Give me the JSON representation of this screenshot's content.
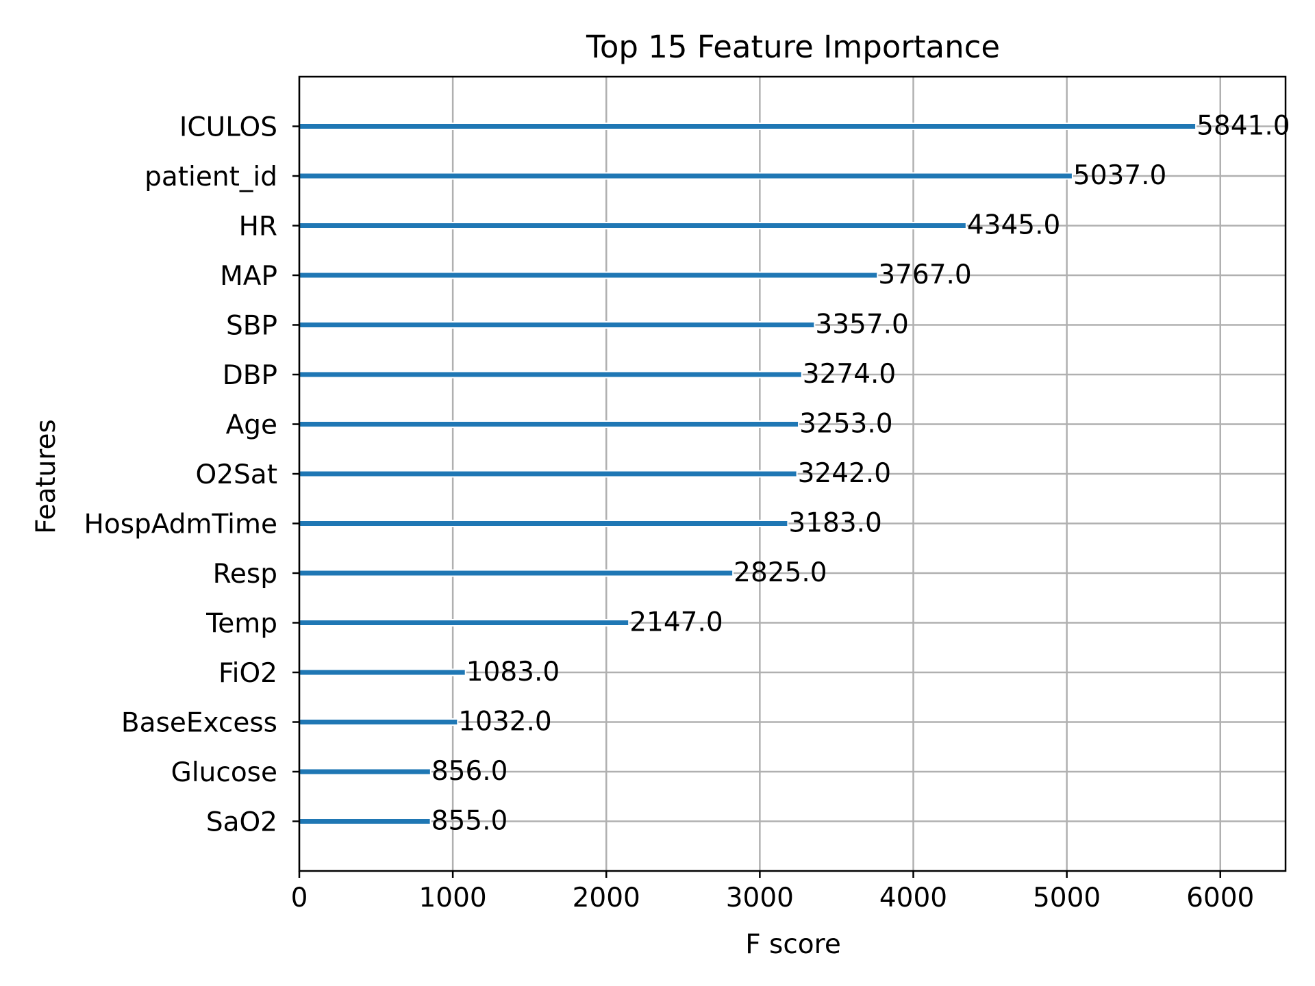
{
  "chart_data": {
    "type": "bar",
    "orientation": "horizontal",
    "title": "Top 15 Feature Importance",
    "xlabel": "F score",
    "ylabel": "Features",
    "categories": [
      "ICULOS",
      "patient_id",
      "HR",
      "MAP",
      "SBP",
      "DBP",
      "Age",
      "O2Sat",
      "HospAdmTime",
      "Resp",
      "Temp",
      "FiO2",
      "BaseExcess",
      "Glucose",
      "SaO2"
    ],
    "values": [
      5841.0,
      5037.0,
      4345.0,
      3767.0,
      3357.0,
      3274.0,
      3253.0,
      3242.0,
      3183.0,
      2825.0,
      2147.0,
      1083.0,
      1032.0,
      856.0,
      855.0
    ],
    "data_labels": [
      "5841.0",
      "5037.0",
      "4345.0",
      "3767.0",
      "3357.0",
      "3274.0",
      "3253.0",
      "3242.0",
      "3183.0",
      "2825.0",
      "2147.0",
      "1083.0",
      "1032.0",
      "856.0",
      "855.0"
    ],
    "xlim": [
      0,
      6425
    ],
    "xticks": [
      0,
      1000,
      2000,
      3000,
      4000,
      5000,
      6000
    ],
    "xtick_labels": [
      "0",
      "1000",
      "2000",
      "3000",
      "4000",
      "5000",
      "6000"
    ],
    "grid": true,
    "bar_color": "#1f77b4",
    "bar_edge_color": "#ffffff"
  }
}
